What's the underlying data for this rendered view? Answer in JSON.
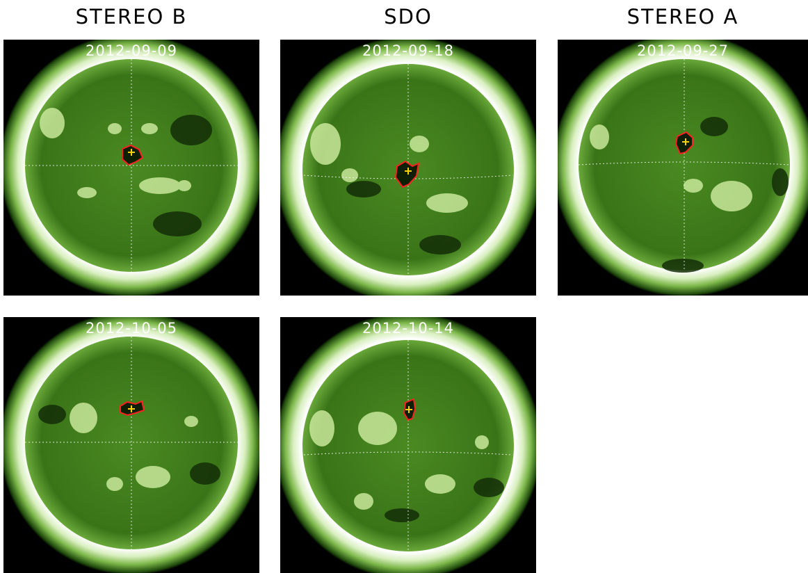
{
  "columns": {
    "stereo_b": "STEREO B",
    "sdo": "SDO",
    "stereo_a": "STEREO A"
  },
  "panels": [
    {
      "date": "2012-09-09",
      "observer": "STEREO B"
    },
    {
      "date": "2012-09-18",
      "observer": "SDO"
    },
    {
      "date": "2012-09-27",
      "observer": "STEREO A"
    },
    {
      "date": "2012-10-05",
      "observer": "STEREO B"
    },
    {
      "date": "2012-10-14",
      "observer": "SDO"
    }
  ],
  "colors": {
    "background": "#000000",
    "disk": "#3f7a1c",
    "corona": "#ffffff",
    "contour": "#ff2020",
    "marker": "#ffd000",
    "grid": "#ffffff"
  }
}
